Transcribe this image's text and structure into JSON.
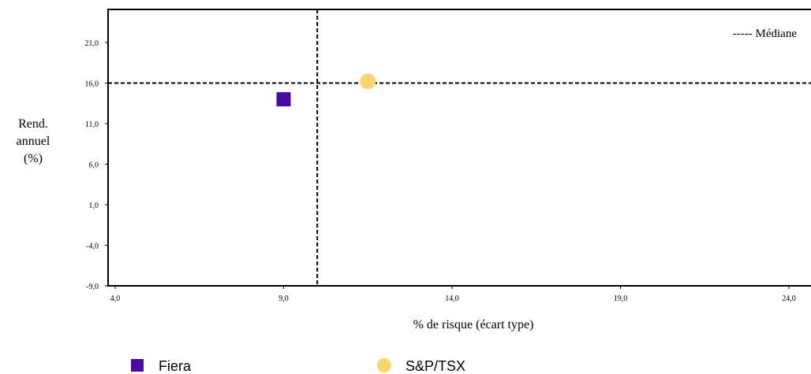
{
  "chart_data": {
    "type": "scatter",
    "title": "",
    "xlabel": "% de risque (écart type)",
    "ylabel_lines": [
      "Rend.",
      "annuel",
      "(%)"
    ],
    "xlim": [
      4.0,
      24.6
    ],
    "ylim": [
      -9.0,
      25.0
    ],
    "x_ticks": [
      4.0,
      9.0,
      14.0,
      19.0,
      24.0
    ],
    "x_tick_labels": [
      "4,0",
      "9,0",
      "14,0",
      "19,0",
      "24,0"
    ],
    "y_ticks": [
      -9.0,
      -4.0,
      1.0,
      6.0,
      11.0,
      16.0,
      21.0
    ],
    "y_tick_labels": [
      "-9,0",
      "-4,0",
      "1,0",
      "6,0",
      "11,0",
      "16,0",
      "21,0"
    ],
    "median": {
      "label": "----- Médiane",
      "x": 10.0,
      "y": 16.0
    },
    "series": [
      {
        "name": "Fiera",
        "marker": "square",
        "color": "#4b0aa0",
        "points": [
          {
            "x": 9.0,
            "y": 14.0
          }
        ]
      },
      {
        "name": "S&P/TSX",
        "marker": "circle",
        "color": "#fbd56e",
        "points": [
          {
            "x": 11.5,
            "y": 16.2
          }
        ]
      }
    ],
    "legend_position": "bottom",
    "grid": false
  }
}
